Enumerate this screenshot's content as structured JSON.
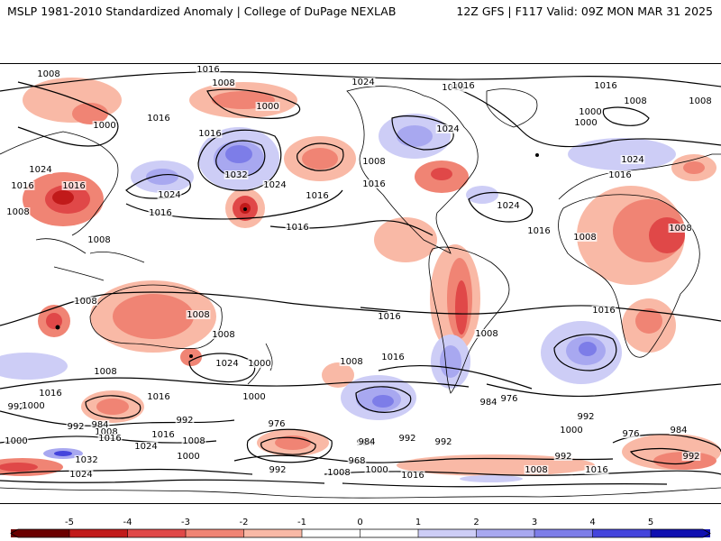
{
  "header": {
    "left": "MSLP 1981-2010 Standardized Anomaly | College of DuPage NEXLAB",
    "right": "12Z GFS | F117 Valid: 09Z MON MAR 31 2025"
  },
  "colors": {
    "neg5": "#6b0000",
    "neg4": "#c11a1a",
    "neg3": "#e04848",
    "neg2": "#f08474",
    "neg1": "#f9b9a6",
    "zero": "#ffffff",
    "pos1": "#cdcdf6",
    "pos2": "#a8a8f0",
    "pos3": "#7d7de8",
    "pos4": "#4444dc",
    "pos5": "#1010b0",
    "isobar": "#000000",
    "coast": "#000000"
  },
  "colorbar": {
    "ticks": [
      "-5",
      "-4",
      "-3",
      "-2",
      "-1",
      "0",
      "1",
      "2",
      "3",
      "4",
      "5"
    ]
  },
  "isobar_labels": [
    "1008",
    "1016",
    "1024",
    "1016",
    "1016",
    "1008",
    "1008",
    "1000",
    "1016",
    "1000",
    "1016",
    "1016",
    "1000",
    "1008",
    "1024",
    "1024",
    "1016",
    "1024",
    "1008",
    "1016",
    "1032",
    "1016",
    "1024",
    "1016",
    "1008",
    "1016",
    "1008",
    "1016",
    "1024",
    "1000",
    "1008",
    "1016",
    "1008",
    "1008",
    "1008",
    "1016",
    "1024",
    "1008",
    "1016",
    "1016",
    "1024",
    "1008",
    "1016",
    "1000",
    "1008",
    "1016",
    "1016",
    "1000",
    "992",
    "1008",
    "984",
    "984",
    "992",
    "1016",
    "1000",
    "992",
    "992",
    "984",
    "1000",
    "976",
    "992",
    "1008",
    "984",
    "992",
    "976",
    "984",
    "1000",
    "1008",
    "1024",
    "1016",
    "1032",
    "1024",
    "992",
    "968",
    "1000",
    "1008",
    "1016",
    "1008",
    "992",
    "1016",
    "992",
    "976",
    "1000"
  ]
}
